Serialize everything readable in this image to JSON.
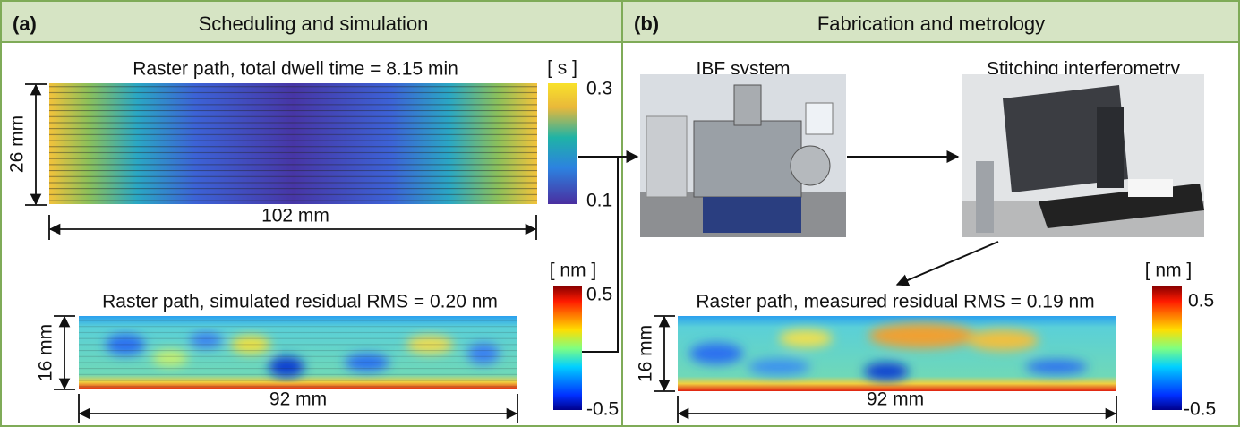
{
  "panels": [
    {
      "label": "(a)",
      "title": "Scheduling and simulation",
      "dwell_map": {
        "title": "Raster path, total dwell time = 8.15 min",
        "height": "26 mm",
        "width": "102 mm",
        "colorbar": {
          "unit": "[ s ]",
          "max": "0.3",
          "min": "0.1"
        }
      },
      "residual_map": {
        "title": "Raster path, simulated residual RMS = 0.20 nm",
        "height": "16 mm",
        "width": "92 mm",
        "colorbar": {
          "unit": "[ nm ]",
          "max": "0.5",
          "min": "-0.5"
        }
      }
    },
    {
      "label": "(b)",
      "title": "Fabrication and metrology",
      "photos": [
        "IBF system",
        "Stitching interferometry"
      ],
      "residual_map": {
        "title": "Raster path, measured residual RMS = 0.19 nm",
        "height": "16 mm",
        "width": "92 mm",
        "colorbar": {
          "unit": "[ nm ]",
          "max": "0.5",
          "min": "-0.5"
        }
      }
    }
  ]
}
